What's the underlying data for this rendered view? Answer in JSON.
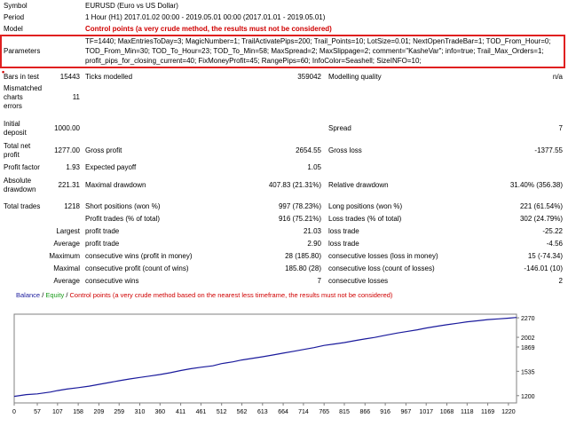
{
  "report": {
    "symbol_label": "Symbol",
    "symbol_value": "EURUSD (Euro vs US Dollar)",
    "period_label": "Period",
    "period_value": "1 Hour (H1) 2017.01.02 00:00 - 2019.05.01 00:00 (2017.01.01 - 2019.05.01)",
    "model_label": "Model",
    "model_value": "Control points (a very crude method, the results must not be considered)",
    "parameters_label": "Parameters",
    "parameters_lines": [
      "TF=1440; MaxEntriesToDay=3; MagicNumber=1; TrailActivatePips=200; Trail_Points=10; LotSize=0.01; NextOpenTradeBar=1; TOD_From_Hour=0;",
      "TOD_From_Min=30; TOD_To_Hour=23; TOD_To_Min=58; MaxSpread=2; MaxSlippage=2; comment=\"KasheVar\"; info=true; Trail_Max_Orders=1;",
      "profit_pips_for_closing_current=40; FixMoneyProfit=45; RangePips=60; InfoColor=Seashell; SizeINFO=10;"
    ],
    "bars_label": "Bars in test",
    "bars_value": "15443",
    "ticks_label": "Ticks modelled",
    "ticks_value": "359042",
    "quality_label": "Modelling quality",
    "quality_value": "n/a",
    "mismatch_label_1": "Mismatched",
    "mismatch_label_2": "charts",
    "mismatch_label_3": "errors",
    "mismatch_value": "11",
    "deposit_label_1": "Initial",
    "deposit_label_2": "deposit",
    "deposit_value": "1000.00",
    "spread_label": "Spread",
    "spread_value": "7",
    "netprofit_label_1": "Total net",
    "netprofit_label_2": "profit",
    "netprofit_value": "1277.00",
    "grossprofit_label": "Gross profit",
    "grossprofit_value": "2654.55",
    "grossloss_label": "Gross loss",
    "grossloss_value": "-1377.55",
    "pf_label": "Profit factor",
    "pf_value": "1.93",
    "payoff_label": "Expected payoff",
    "payoff_value": "1.05",
    "absdd_label_1": "Absolute",
    "absdd_label_2": "drawdown",
    "absdd_value": "221.31",
    "maxdd_label": "Maximal drawdown",
    "maxdd_value": "407.83 (21.31%)",
    "reldd_label": "Relative drawdown",
    "reldd_value": "31.40% (356.38)",
    "trades_label": "Total trades",
    "trades_value": "1218",
    "short_label": "Short positions (won %)",
    "short_value": "997 (78.23%)",
    "long_label": "Long positions (won %)",
    "long_value": "221 (61.54%)",
    "profit_trades_label": "Profit trades (% of total)",
    "profit_trades_value": "916 (75.21%)",
    "loss_trades_label": "Loss trades (% of total)",
    "loss_trades_value": "302 (24.79%)",
    "largest_label": "Largest",
    "largest_profit_label": "profit trade",
    "largest_profit_value": "21.03",
    "largest_loss_label": "loss trade",
    "largest_loss_value": "-25.22",
    "average_label": "Average",
    "average_profit_label": "profit trade",
    "average_profit_value": "2.90",
    "average_loss_label": "loss trade",
    "average_loss_value": "-4.56",
    "maximum_label": "Maximum",
    "max_wins_label": "consecutive wins (profit in money)",
    "max_wins_value": "28 (185.80)",
    "max_losses_label": "consecutive losses (loss in money)",
    "max_losses_value": "15 (-74.34)",
    "maximal_label": "Maximal",
    "maximal_profit_label": "consecutive profit (count of wins)",
    "maximal_profit_value": "185.80 (28)",
    "maximal_loss_label": "consecutive loss (count of losses)",
    "maximal_loss_value": "-146.01 (10)",
    "avg_cons_label": "Average",
    "avg_wins_label": "consecutive wins",
    "avg_wins_value": "7",
    "avg_losses_label": "consecutive losses",
    "avg_losses_value": "2"
  },
  "chart_legend": {
    "balance": "Balance",
    "sep1": " / ",
    "equity": "Equity",
    "sep2": " / ",
    "note": "Control points (a very crude method based on the nearest less timeframe, the results must not be considered)"
  },
  "chart_data": {
    "type": "line",
    "title": "",
    "xlabel": "",
    "ylabel": "",
    "xlim": [
      0,
      1240
    ],
    "ylim": [
      1100,
      2320
    ],
    "x_ticks": [
      0,
      57,
      107,
      158,
      209,
      259,
      310,
      360,
      411,
      461,
      512,
      562,
      613,
      664,
      714,
      765,
      815,
      866,
      916,
      967,
      1017,
      1068,
      1118,
      1169,
      1220
    ],
    "y_ticks": [
      1200,
      1535,
      1869,
      2002,
      2270
    ],
    "series": [
      {
        "name": "Balance",
        "color": "#1a1a9c",
        "x": [
          0,
          30,
          57,
          90,
          107,
          130,
          158,
          185,
          209,
          235,
          259,
          285,
          310,
          335,
          360,
          385,
          411,
          435,
          461,
          490,
          512,
          540,
          562,
          590,
          613,
          640,
          664,
          690,
          714,
          740,
          765,
          790,
          815,
          845,
          866,
          890,
          916,
          945,
          967,
          995,
          1017,
          1045,
          1068,
          1095,
          1118,
          1145,
          1169,
          1195,
          1220,
          1240
        ],
        "y": [
          1190,
          1215,
          1225,
          1250,
          1270,
          1290,
          1310,
          1330,
          1355,
          1380,
          1405,
          1430,
          1450,
          1470,
          1490,
          1515,
          1545,
          1570,
          1590,
          1610,
          1640,
          1665,
          1690,
          1715,
          1735,
          1760,
          1785,
          1810,
          1835,
          1860,
          1890,
          1910,
          1930,
          1960,
          1980,
          2000,
          2030,
          2060,
          2080,
          2105,
          2130,
          2155,
          2175,
          2195,
          2215,
          2230,
          2245,
          2255,
          2265,
          2275
        ]
      },
      {
        "name": "Equity",
        "color": "#1a9c1a",
        "x": [],
        "y": []
      }
    ],
    "grid": false,
    "legend": "top-left"
  }
}
